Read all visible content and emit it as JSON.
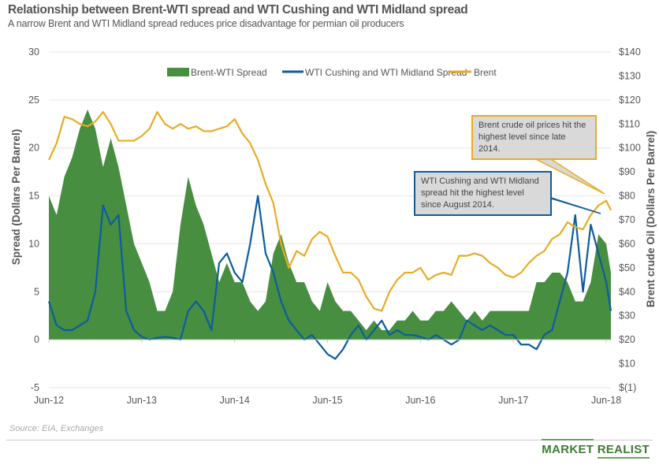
{
  "title": "Relationship between Brent-WTI spread and WTI Cushing and WTI Midland spread",
  "subtitle": "A narrow Brent and WTI Midland spread reduces price disadvantage for permian oil producers",
  "source": "Source: EIA, Exchanges",
  "logo": {
    "word1": "MARKET",
    "word2": "REALIST"
  },
  "colors": {
    "brent_wti": "#478e41",
    "cushing_midland": "#0d5c9e",
    "brent": "#e8ac22"
  },
  "chart_data": {
    "type": "area+line",
    "x_tick_labels": [
      "Jun-12",
      "Jun-13",
      "Jun-14",
      "Jun-15",
      "Jun-16",
      "Jun-17",
      "Jun-18"
    ],
    "y_left_label": "Spread (Dollars Per Barrel)",
    "y_right_label": "Brent crude Oil (Dollars Per Barrel)",
    "y_left_ticks": [
      "30",
      "25",
      "20",
      "15",
      "10",
      "5",
      "0",
      "-5"
    ],
    "y_left_range": [
      -5,
      30
    ],
    "y_right_ticks": [
      "$140",
      "$130",
      "$120",
      "$110",
      "$100",
      "$90",
      "$80",
      "$70",
      "$60",
      "$50",
      "$40",
      "$30",
      "$20",
      "$10",
      "$(1)"
    ],
    "y_right_range": [
      0,
      140
    ],
    "grid": true,
    "legend_position": "top",
    "x_start": "Jun-12",
    "x_interval": "month",
    "series": [
      {
        "name": "Brent-WTI Spread",
        "kind": "area",
        "axis": "left",
        "values": [
          15,
          13,
          17,
          19,
          22,
          24,
          22,
          18,
          21,
          18,
          14,
          10,
          8,
          6,
          3,
          3,
          5,
          12,
          17,
          14,
          12,
          9,
          6,
          8,
          6,
          6,
          4,
          3,
          4,
          9,
          11,
          8,
          6,
          6,
          4,
          3,
          6,
          4,
          3,
          3,
          2,
          1,
          2,
          1,
          1,
          2,
          2,
          3,
          2,
          2,
          3,
          3,
          4,
          3,
          2,
          3,
          2,
          3,
          3,
          3,
          3,
          3,
          3,
          6,
          6,
          7,
          7,
          6,
          4,
          4,
          6,
          11,
          10,
          7
        ]
      },
      {
        "name": "WTI Cushing and WTI Midland Spread",
        "kind": "line",
        "axis": "left",
        "values": [
          4,
          1.5,
          1,
          1,
          1.5,
          2,
          5,
          14,
          12,
          13,
          3,
          1,
          0.3,
          0,
          0.2,
          0.3,
          0.2,
          0,
          3,
          4,
          3,
          1,
          8,
          9,
          7,
          6,
          10,
          15,
          9,
          7,
          4,
          2,
          1,
          0,
          0.5,
          -0.5,
          -1.5,
          -2,
          -1,
          0.5,
          1.5,
          0,
          1,
          2,
          0.5,
          1,
          0.5,
          0.5,
          0.3,
          0,
          0.5,
          0,
          -0.5,
          0,
          2,
          1.5,
          1,
          1.5,
          1,
          0.5,
          0.5,
          -0.5,
          -0.5,
          -1,
          0.5,
          1,
          4,
          7,
          13,
          5,
          12,
          9,
          6,
          3
        ]
      },
      {
        "name": "Brent",
        "kind": "line",
        "axis": "right",
        "values": [
          95,
          102,
          113,
          112,
          110,
          109,
          111,
          115,
          110,
          103,
          103,
          103,
          105,
          108,
          115,
          110,
          108,
          110,
          108,
          109,
          107,
          107,
          108,
          109,
          112,
          106,
          102,
          95,
          85,
          77,
          60,
          50,
          57,
          55,
          62,
          65,
          63,
          55,
          48,
          48,
          45,
          38,
          33,
          32,
          40,
          45,
          48,
          48,
          50,
          45,
          47,
          48,
          47,
          55,
          55,
          56,
          55,
          52,
          50,
          47,
          46,
          48,
          52,
          55,
          57,
          62,
          64,
          69,
          67,
          66,
          72,
          76,
          78,
          74
        ]
      }
    ],
    "annotations": [
      {
        "text": "Brent crude oil prices hit the highest level since late  2014."
      },
      {
        "text": "WTI Cushing and WTI Midland spread hit the highest level since August  2014."
      }
    ]
  }
}
